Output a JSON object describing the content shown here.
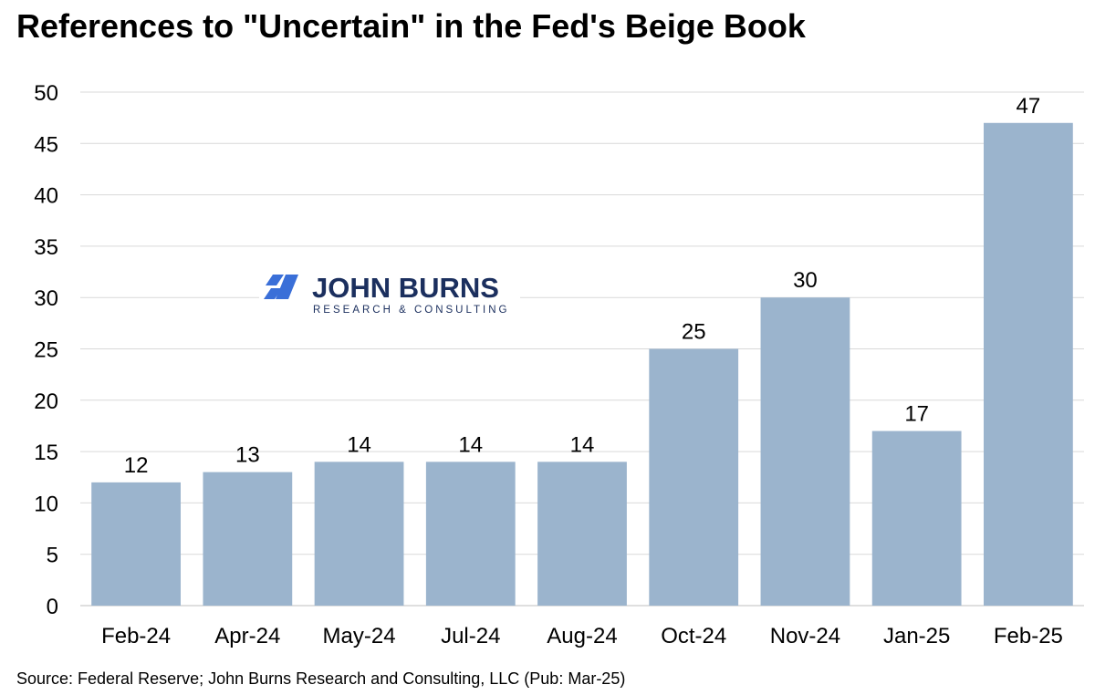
{
  "title": "References to \"Uncertain\" in the Fed's Beige Book",
  "source": "Source: Federal Reserve; John Burns Research and Consulting, LLC (Pub: Mar-25)",
  "logo": {
    "name": "JOHN BURNS",
    "subtitle": "RESEARCH & CONSULTING",
    "icon": "john-burns-logo-mark",
    "colors": {
      "mark": "#3a6fd8",
      "text": "#1b2f5e"
    }
  },
  "chart_data": {
    "type": "bar",
    "categories": [
      "Feb-24",
      "Apr-24",
      "May-24",
      "Jul-24",
      "Aug-24",
      "Oct-24",
      "Nov-24",
      "Jan-25",
      "Feb-25"
    ],
    "values": [
      12,
      13,
      14,
      14,
      14,
      25,
      30,
      17,
      47
    ],
    "data_labels": [
      "12",
      "13",
      "14",
      "14",
      "14",
      "25",
      "30",
      "17",
      "47"
    ],
    "y_ticks": [
      "0",
      "5",
      "10",
      "15",
      "20",
      "25",
      "30",
      "35",
      "40",
      "45",
      "50"
    ],
    "ylim": [
      0,
      50
    ],
    "xlabel": "",
    "ylabel": "",
    "grid": true,
    "legend": "none",
    "bar_color": "#9bb4cd",
    "grid_color": "#d9d9d9"
  }
}
